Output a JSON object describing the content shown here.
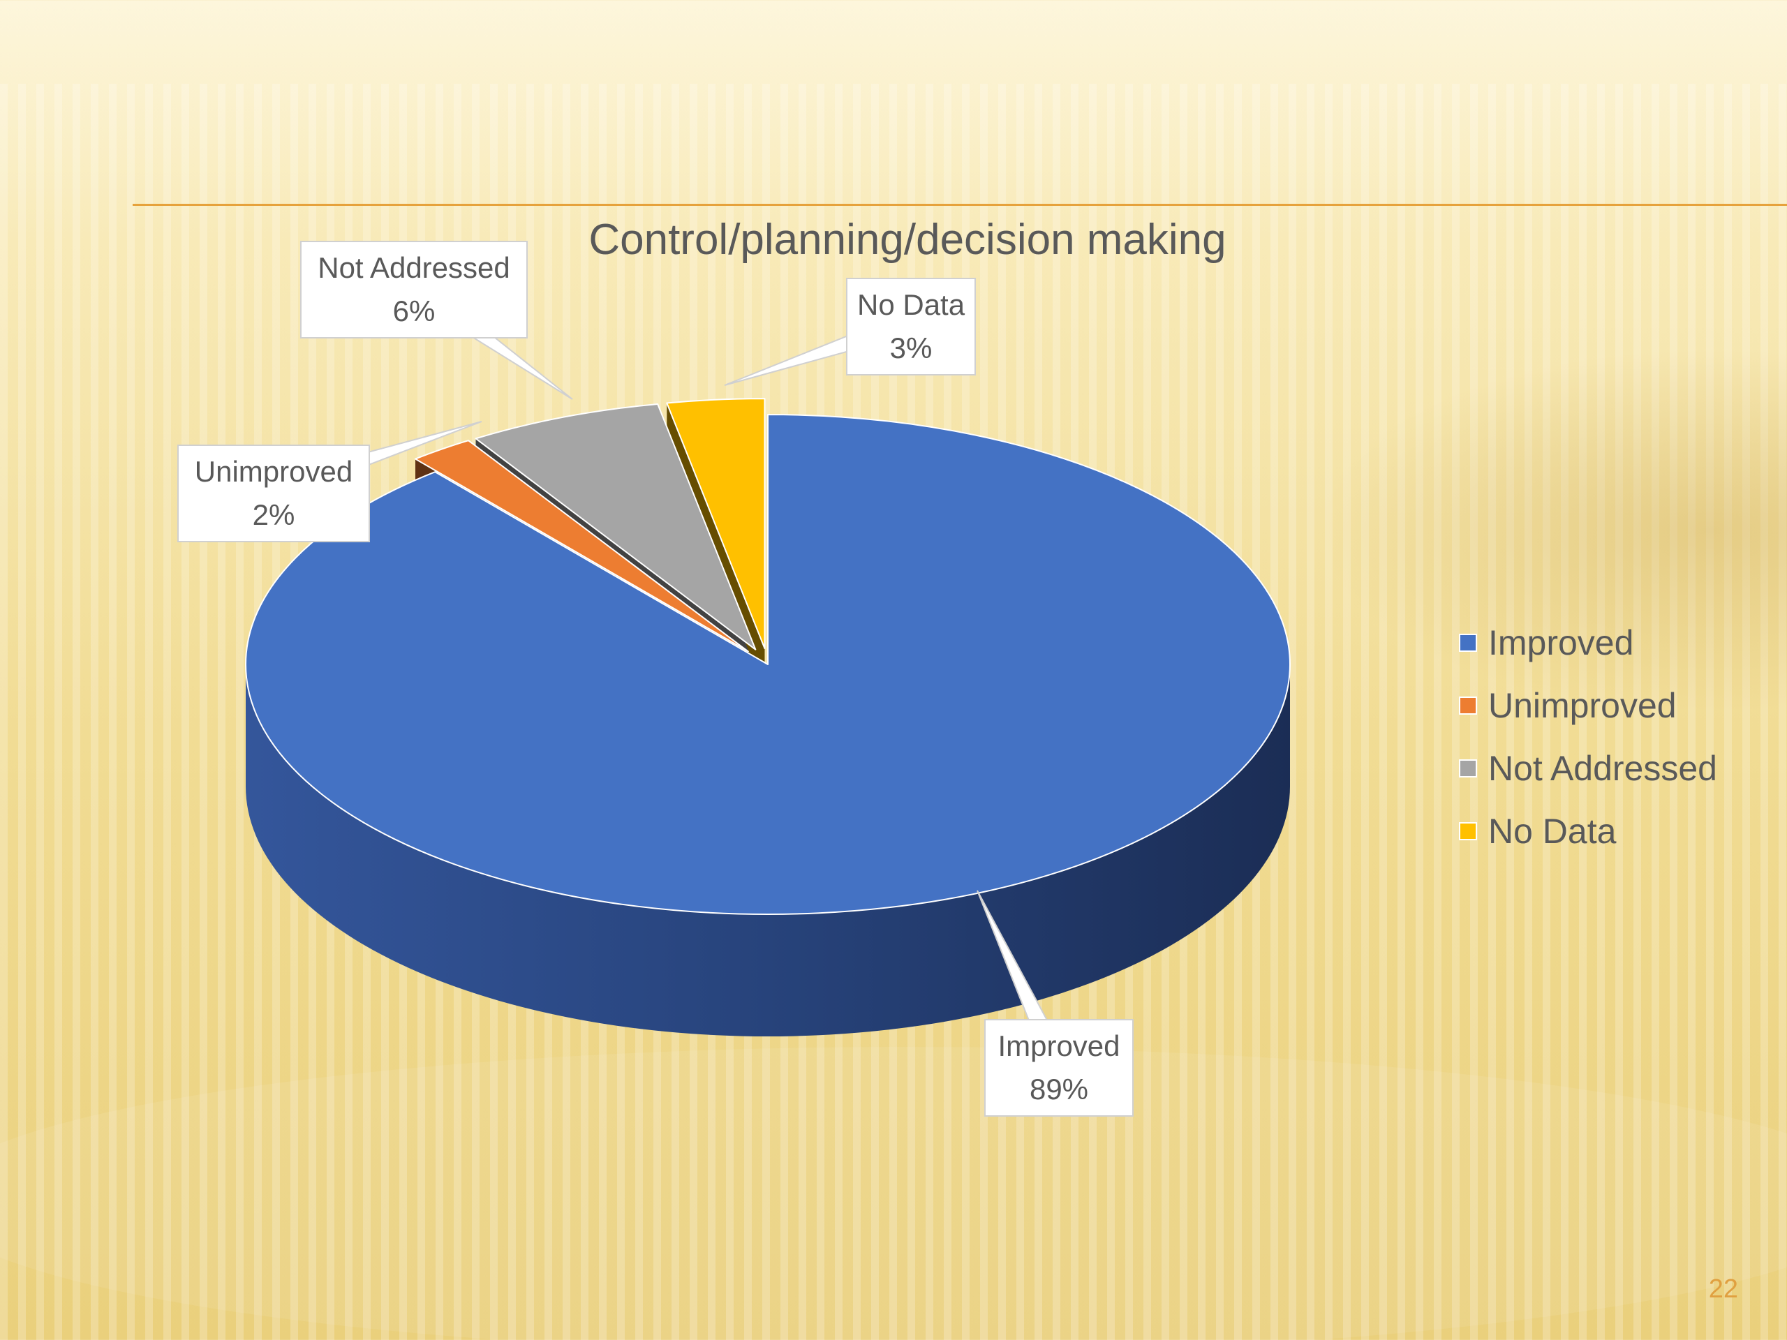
{
  "chart_data": {
    "type": "pie",
    "title": "Control/planning/decision making",
    "categories": [
      "Improved",
      "Unimproved",
      "Not Addressed",
      "No Data"
    ],
    "values": [
      89,
      2,
      6,
      3
    ],
    "value_labels": [
      "89%",
      "2%",
      "6%",
      "3%"
    ],
    "colors": [
      "#4472c4",
      "#ed7d31",
      "#a5a5a5",
      "#ffc000"
    ],
    "exploded": [
      false,
      true,
      true,
      true
    ],
    "style": "3d",
    "legend_position": "right"
  },
  "slide": {
    "page_number": "22"
  }
}
